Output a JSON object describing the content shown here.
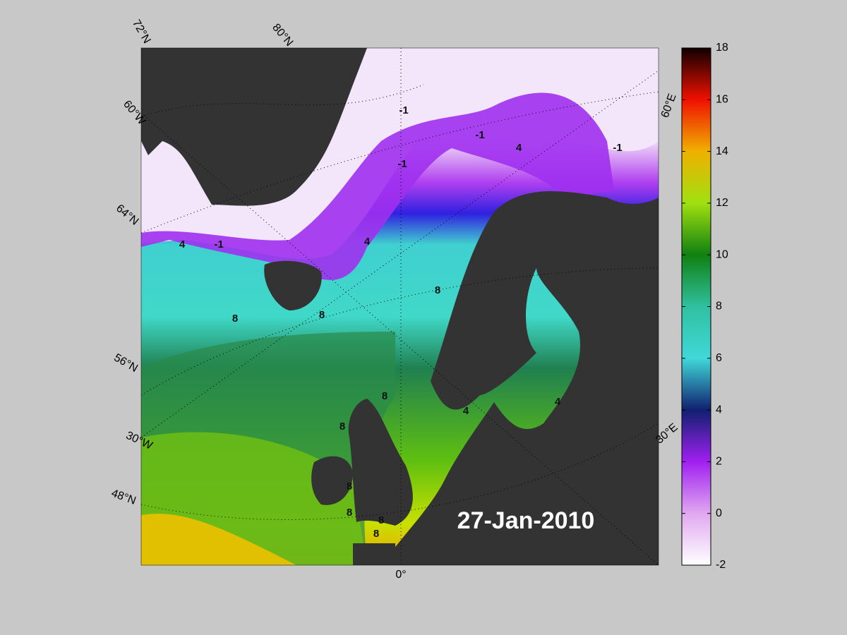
{
  "date_label": "27-Jan-2010",
  "graticule_labels": [
    "72°N",
    "80°N",
    "60°W",
    "64°N",
    "56°N",
    "30°W",
    "48°N",
    "0°",
    "60°E",
    "30°E"
  ],
  "contour_labels": [
    "-1",
    "-1",
    "-1",
    "-1",
    "-1",
    "4",
    "4",
    "4",
    "4",
    "4",
    "8",
    "8",
    "8",
    "8",
    "8",
    "8",
    "8",
    "8",
    "8"
  ],
  "colorbar": {
    "lim": [
      -2,
      18
    ],
    "ticks": [
      -2,
      0,
      2,
      4,
      6,
      8,
      10,
      12,
      14,
      16,
      18
    ],
    "colors": [
      "#ffffff",
      "#e0a8f0",
      "#a020f0",
      "#102070",
      "#40d8d8",
      "#30c0a0",
      "#108010",
      "#a0e010",
      "#f0b000",
      "#f01000",
      "#100000"
    ]
  }
}
